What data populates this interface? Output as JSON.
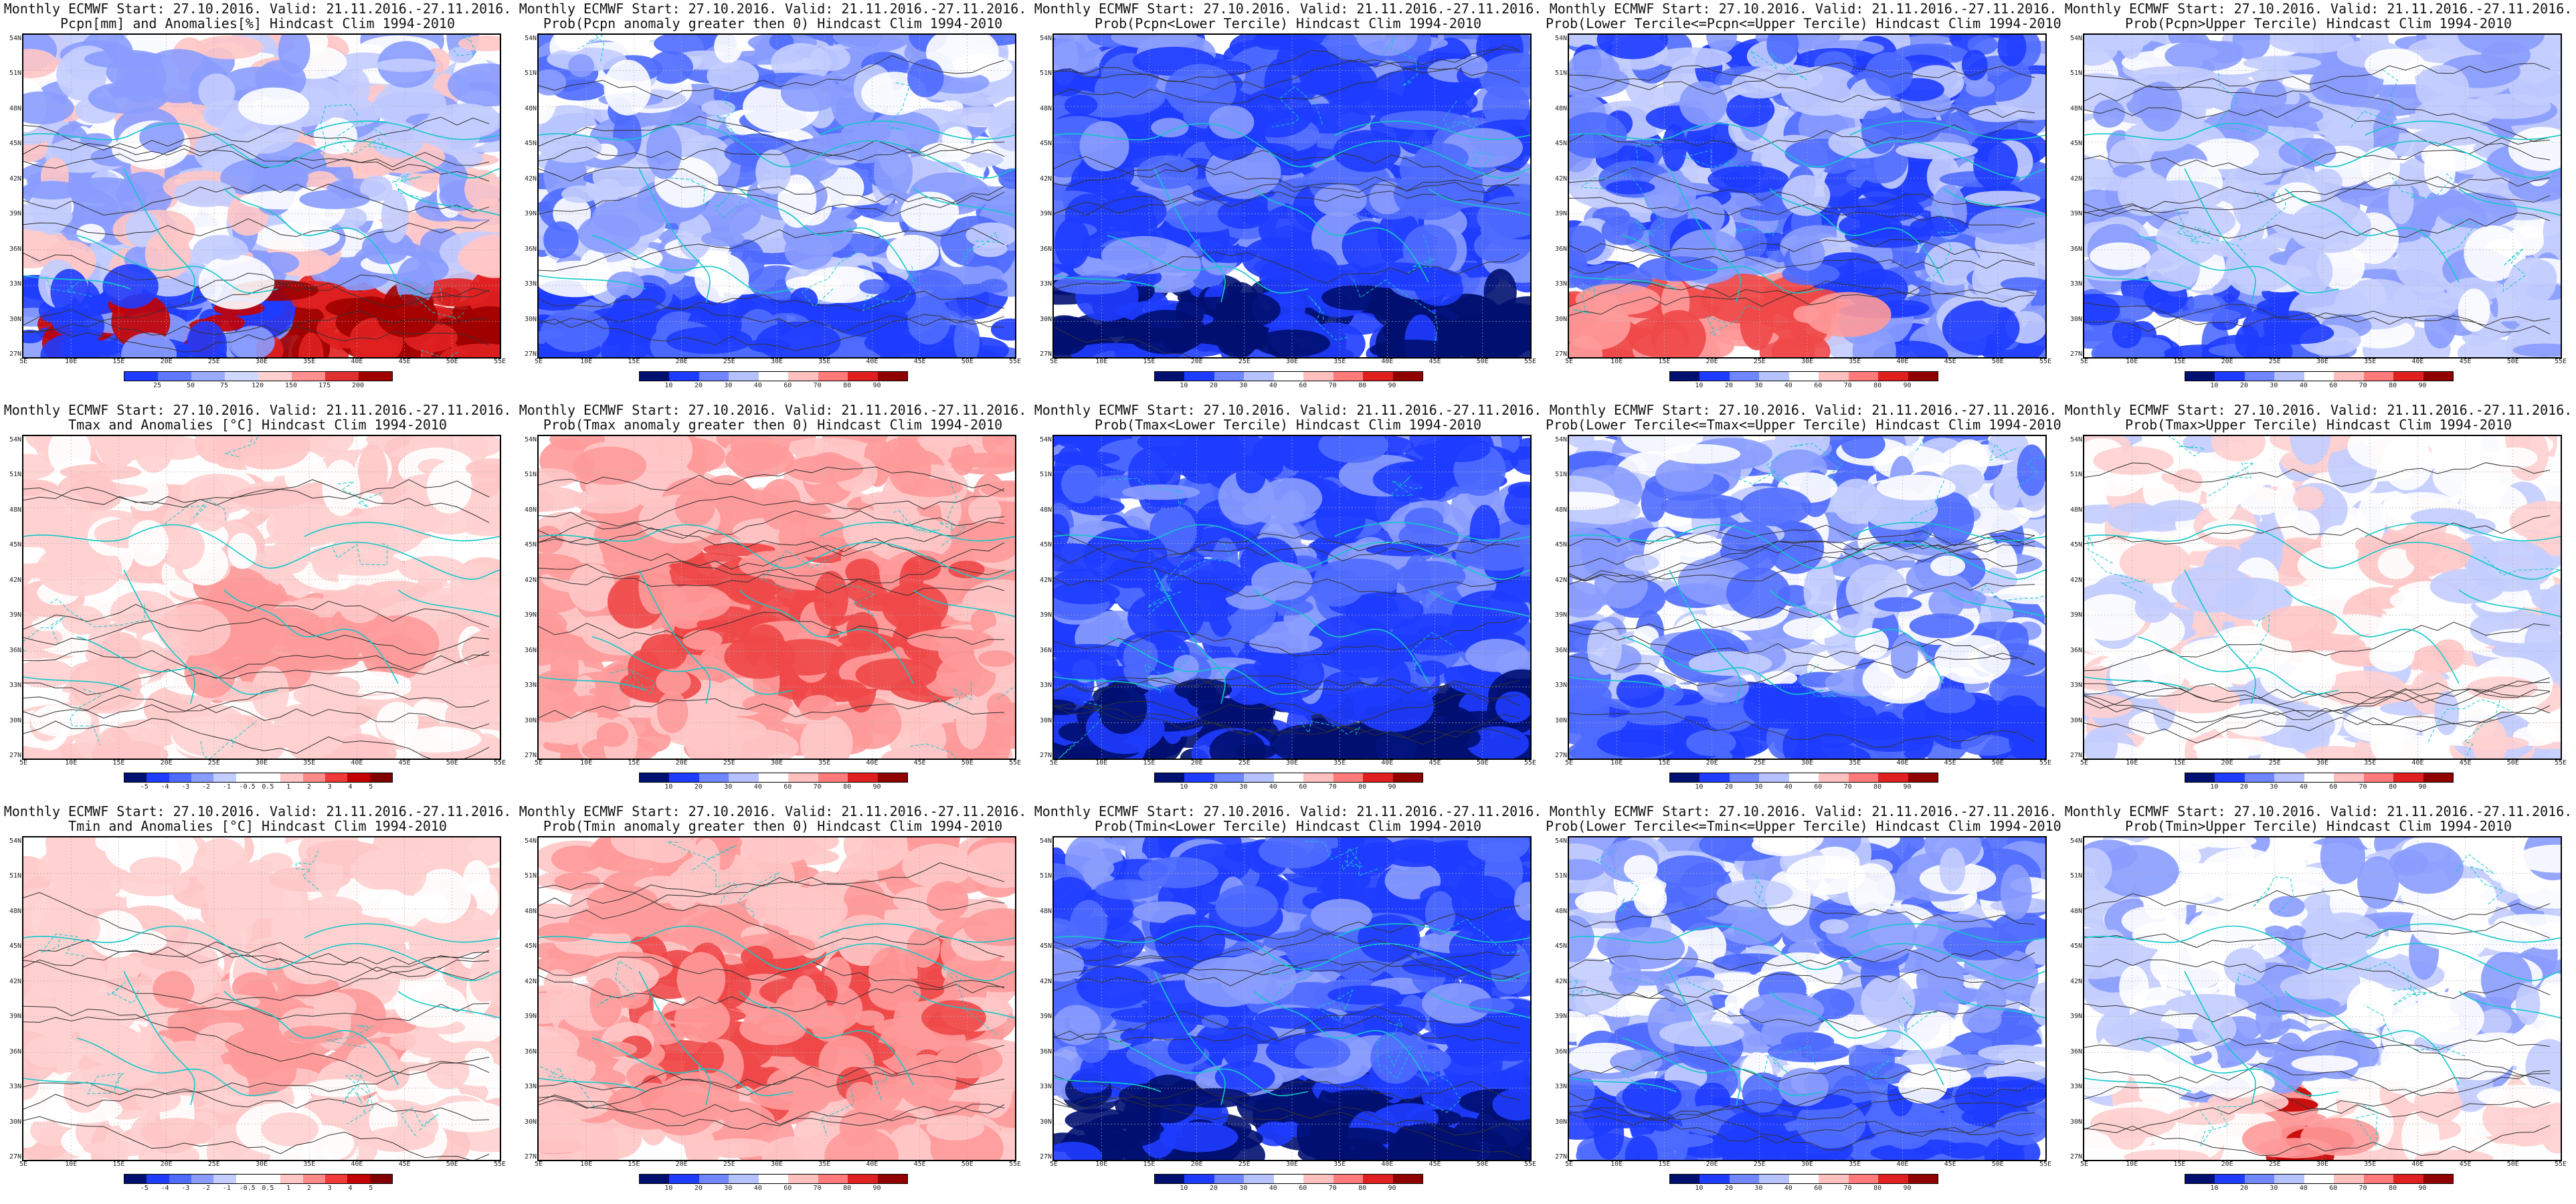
{
  "page": {
    "header_line1": "Monthly ECMWF Start: 27.10.2016. Valid: 21.11.2016.-27.11.2016.",
    "hindcast": "Hindcast Clim 1994-2010"
  },
  "axes": {
    "lat": [
      "54N",
      "51N",
      "48N",
      "45N",
      "42N",
      "39N",
      "36N",
      "33N",
      "30N",
      "27N"
    ],
    "lon": [
      "5E",
      "10E",
      "15E",
      "20E",
      "25E",
      "30E",
      "35E",
      "40E",
      "45E",
      "50E",
      "55E"
    ]
  },
  "colorbars": {
    "pcpn_pct": {
      "ticks": [
        "25",
        "50",
        "75",
        "120",
        "150",
        "175",
        "200"
      ]
    },
    "temp_anom": {
      "ticks": [
        "-5",
        "-4",
        "-3",
        "-2",
        "-1",
        "-0.5",
        "0.5",
        "1",
        "2",
        "3",
        "4",
        "5"
      ]
    },
    "prob": {
      "ticks": [
        "10",
        "20",
        "30",
        "40",
        "60",
        "70",
        "80",
        "90"
      ]
    }
  },
  "palettes": {
    "div12": [
      "#001070",
      "#1e3cff",
      "#4f6bff",
      "#8a9cff",
      "#c3cdff",
      "#ffffff",
      "#ffffff",
      "#ffc6c6",
      "#ff8a8a",
      "#f03a3a",
      "#c40000",
      "#800000"
    ],
    "div9": [
      "#001070",
      "#1e3cff",
      "#6f86ff",
      "#b5c2ff",
      "#ffffff",
      "#ffc0c0",
      "#ff7a7a",
      "#e02020",
      "#900000"
    ],
    "div8": [
      "#1e3cff",
      "#5f78ff",
      "#9aabff",
      "#d0d8ff",
      "#ffd0d0",
      "#ff9090",
      "#e03030",
      "#a00000"
    ]
  },
  "panels": [
    {
      "title2": "Pcpn[mm] and Anomalies[%]",
      "bar": "pcpn_pct",
      "mode": "pcpn"
    },
    {
      "title2": "Prob(Pcpn anomaly greater then 0)",
      "bar": "prob",
      "mode": "blue"
    },
    {
      "title2": "Prob(Pcpn<Lower Tercile)",
      "bar": "prob",
      "mode": "blue_dark"
    },
    {
      "title2": "Prob(Lower Tercile<=Pcpn<=Upper Tercile)",
      "bar": "prob",
      "mode": "blue_redsouth"
    },
    {
      "title2": "Prob(Pcpn>Upper Tercile)",
      "bar": "prob",
      "mode": "blue_light"
    },
    {
      "title2": "Tmax and Anomalies [°C]",
      "bar": "temp_anom",
      "mode": "red_light"
    },
    {
      "title2": "Prob(Tmax anomaly greater then 0)",
      "bar": "prob",
      "mode": "red"
    },
    {
      "title2": "Prob(Tmax<Lower Tercile)",
      "bar": "prob",
      "mode": "blue_dark"
    },
    {
      "title2": "Prob(Lower Tercile<=Tmax<=Upper Tercile)",
      "bar": "prob",
      "mode": "blue"
    },
    {
      "title2": "Prob(Tmax>Upper Tercile)",
      "bar": "prob",
      "mode": "white_red"
    },
    {
      "title2": "Tmin and Anomalies [°C]",
      "bar": "temp_anom",
      "mode": "red_light"
    },
    {
      "title2": "Prob(Tmin anomaly greater then 0)",
      "bar": "prob",
      "mode": "red"
    },
    {
      "title2": "Prob(Tmin<Lower Tercile)",
      "bar": "prob",
      "mode": "blue_dark"
    },
    {
      "title2": "Prob(Lower Tercile<=Tmin<=Upper Tercile)",
      "bar": "prob",
      "mode": "blue"
    },
    {
      "title2": "Prob(Tmin>Upper Tercile)",
      "bar": "prob",
      "mode": "white_redsouth"
    }
  ]
}
